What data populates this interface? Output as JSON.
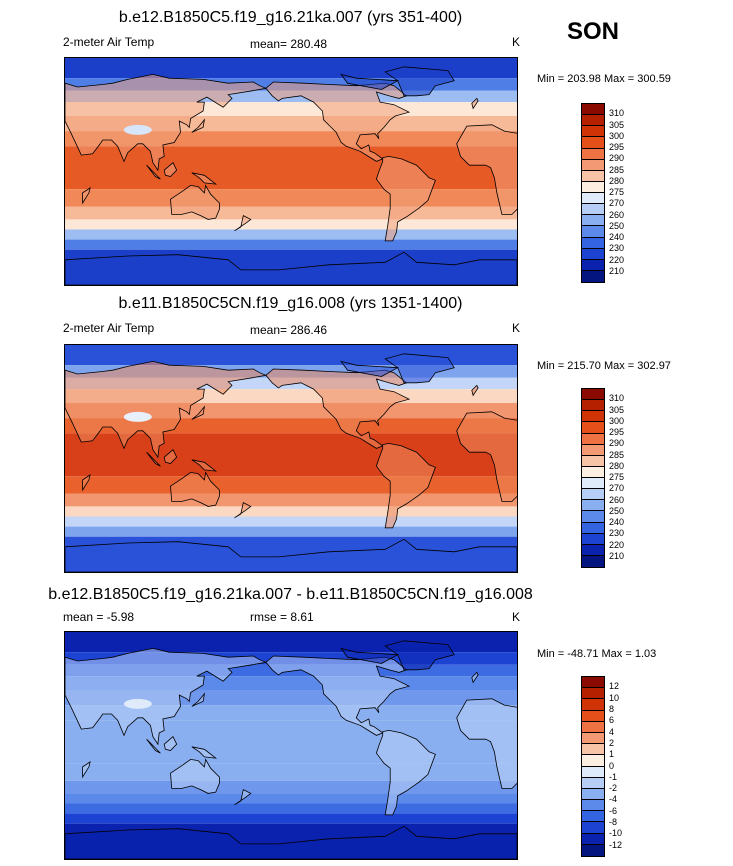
{
  "season": "SON",
  "colorbars": {
    "temp": {
      "labels": [
        "310",
        "305",
        "300",
        "295",
        "290",
        "285",
        "280",
        "275",
        "270",
        "260",
        "250",
        "240",
        "230",
        "220",
        "210"
      ],
      "colors": [
        "#8b0a00",
        "#b52000",
        "#cf3306",
        "#e5501a",
        "#ef7245",
        "#f39a74",
        "#f8c4a7",
        "#fcefe2",
        "#dfeafa",
        "#b6cdf6",
        "#8aaff0",
        "#5c8aea",
        "#3564e3",
        "#1d43d2",
        "#0a22ae",
        "#051580"
      ]
    },
    "diff": {
      "labels": [
        "12",
        "10",
        "8",
        "6",
        "4",
        "2",
        "1",
        "0",
        "-1",
        "-2",
        "-4",
        "-6",
        "-8",
        "-10",
        "-12"
      ],
      "colors": [
        "#8b0a00",
        "#b52000",
        "#cf3306",
        "#e5501a",
        "#ef7245",
        "#f39a74",
        "#f8c4a7",
        "#fcefe2",
        "#dfeafa",
        "#b6cdf6",
        "#8aaff0",
        "#5c8aea",
        "#3564e3",
        "#1d43d2",
        "#0a22ae",
        "#051580"
      ]
    }
  },
  "panels": [
    {
      "title": "b.e12.B1850C5.f19_g16.21ka.007 (yrs 351-400)",
      "variable": "2-meter Air Temp",
      "stat": "mean= 280.48",
      "units": "K",
      "minmax": "Min = 203.98 Max = 300.59",
      "colors": {
        "c": "#e65a26",
        "s": "#f08858",
        "t": "#f6ba98",
        "m": "#fde8d8",
        "p": "#9cbcf2",
        "q": "#4f7ee6",
        "r": "#1c3fc9",
        "land": "#f3a07c",
        "ice": "#d7e6fb"
      }
    },
    {
      "title": "b.e11.B1850C5CN.f19_g16.008 (yrs 1351-1400)",
      "variable": "2-meter Air Temp",
      "stat": "mean= 286.46",
      "units": "K",
      "minmax": "Min = 215.70 Max = 302.97",
      "colors": {
        "c": "#d8401a",
        "s": "#e9622e",
        "t": "#f29670",
        "m": "#fbd8c2",
        "p": "#c3d6f8",
        "q": "#7ea4ee",
        "r": "#2a52d8",
        "land": "#ee8a5e",
        "ice": "#e8f0fc"
      }
    },
    {
      "title": "b.e12.B1850C5.f19_g16.21ka.007 - b.e11.B1850C5CN.f19_g16.008",
      "variable": "mean =  -5.98",
      "stat": "rmse =   8.61",
      "units": "K",
      "minmax": "Min = -48.71 Max =   1.03",
      "colors": {
        "c": "#8aaff0",
        "s": "#8aaff0",
        "t": "#6f97ec",
        "m": "#5c8aea",
        "p": "#3d6be2",
        "q": "#1d43d2",
        "r": "#0a22ae",
        "land": "#b6cdf6",
        "ice": "#dfeafa"
      }
    }
  ]
}
